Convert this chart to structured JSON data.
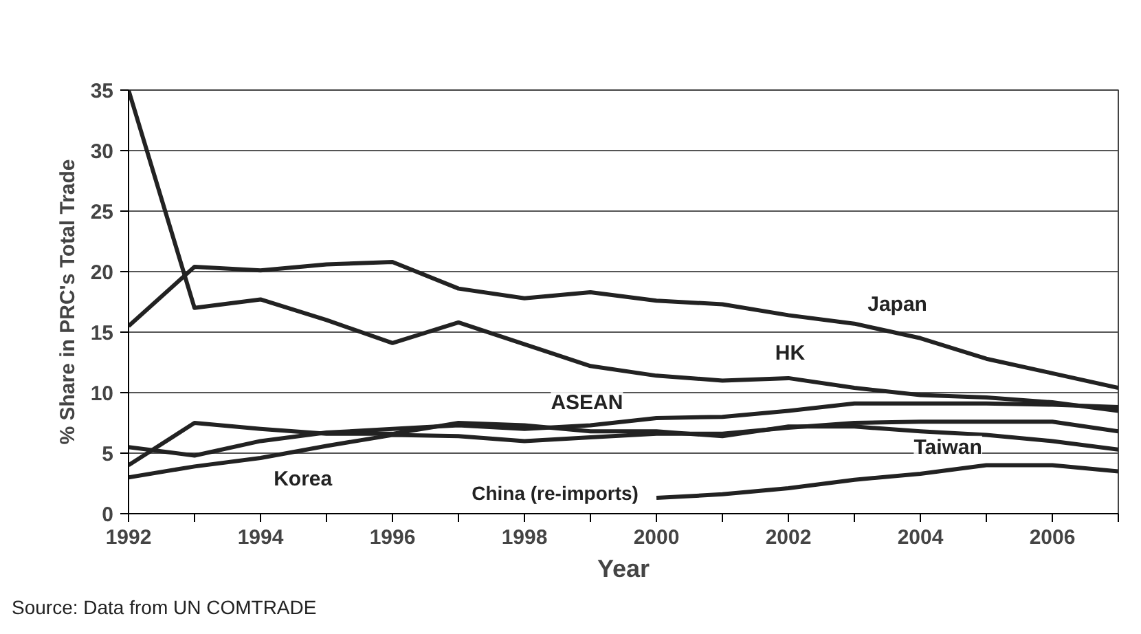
{
  "chart_data": {
    "type": "line",
    "xlabel": "Year",
    "ylabel": "% Share in PRC's Total Trade",
    "annotations": [
      "Source: Data from UN COMTRADE"
    ],
    "x": [
      1992,
      1993,
      1994,
      1995,
      1996,
      1997,
      1998,
      1999,
      2000,
      2001,
      2002,
      2003,
      2004,
      2005,
      2006,
      2007
    ],
    "series": [
      {
        "name": "Japan",
        "color": "#222222",
        "values": [
          15.5,
          20.4,
          20.1,
          20.6,
          20.8,
          18.6,
          17.8,
          18.3,
          17.6,
          17.3,
          16.4,
          15.7,
          14.5,
          12.8,
          11.6,
          10.4
        ]
      },
      {
        "name": "HK",
        "color": "#222222",
        "values": [
          35,
          17,
          17.7,
          16,
          14.1,
          15.8,
          14,
          12.2,
          11.4,
          11,
          11.2,
          10.4,
          9.8,
          9.6,
          9.2,
          8.5
        ]
      },
      {
        "name": "ASEAN",
        "color": "#222222",
        "values": [
          5.5,
          4.8,
          6,
          6.7,
          7,
          7.3,
          7,
          7.3,
          7.9,
          8,
          8.5,
          9.1,
          9.1,
          9.1,
          9,
          8.8
        ]
      },
      {
        "name": "Taiwan",
        "color": "#222222",
        "values": [
          4,
          7.5,
          7,
          6.6,
          6.6,
          7.5,
          7.3,
          6.8,
          6.8,
          6.4,
          7.2,
          7.2,
          6.8,
          6.5,
          6,
          5.3
        ]
      },
      {
        "name": "Korea",
        "color": "#222222",
        "values": [
          3,
          3.9,
          4.6,
          5.6,
          6.5,
          6.4,
          6,
          6.3,
          6.6,
          6.6,
          7.1,
          7.5,
          7.6,
          7.6,
          7.6,
          6.8
        ]
      },
      {
        "name": "China (re-imports)",
        "color": "#222222",
        "values": [
          null,
          null,
          null,
          null,
          null,
          null,
          null,
          null,
          1.3,
          1.6,
          2.1,
          2.8,
          3.3,
          4,
          4,
          3.5
        ]
      }
    ],
    "xlim": [
      1992,
      2007
    ],
    "xticks": [
      1992,
      {
        "value": 1993,
        "label": null
      },
      1994,
      {
        "value": 1995,
        "label": null
      },
      1996,
      {
        "value": 1997,
        "label": null
      },
      1998,
      {
        "value": 1999,
        "label": null
      },
      2000,
      {
        "value": 2001,
        "label": null
      },
      2002,
      {
        "value": 2003,
        "label": null
      },
      2004,
      {
        "value": 2005,
        "label": null
      },
      2006,
      {
        "value": 2007,
        "label": null
      }
    ],
    "ylim": [
      0,
      35
    ],
    "yticks": [
      0,
      5,
      10,
      15,
      20,
      25,
      30,
      35
    ],
    "grid": "y",
    "marker": "none",
    "line_style": "solid"
  }
}
